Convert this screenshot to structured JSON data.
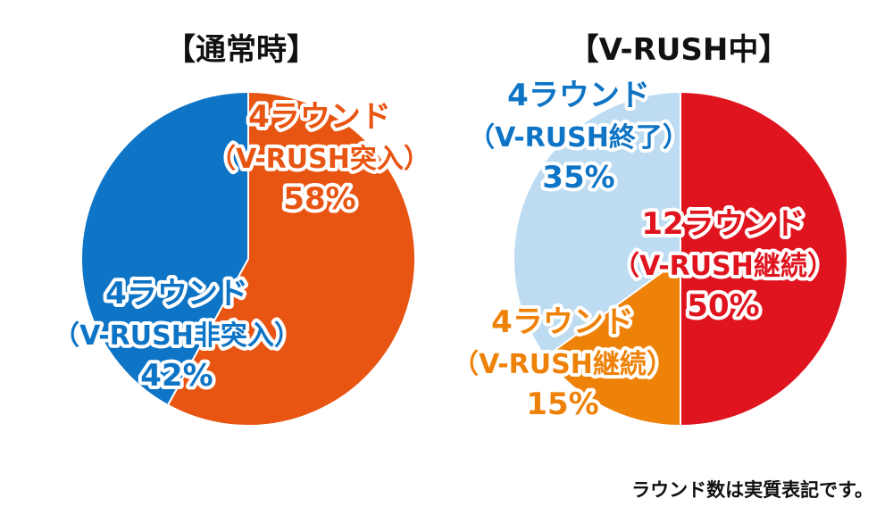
{
  "chart_data": [
    {
      "type": "pie",
      "title": "【通常時】",
      "slices": [
        {
          "label_lines": [
            "4ラウンド",
            "（V-RUSH突入）",
            "58%"
          ],
          "value": 58,
          "color": "#e85512",
          "text_color": "#e85512"
        },
        {
          "label_lines": [
            "4ラウンド",
            "（V-RUSH非突入）",
            "42%"
          ],
          "value": 42,
          "color": "#0e74c5",
          "text_color": "#0e74c5"
        }
      ]
    },
    {
      "type": "pie",
      "title": "【V-RUSH中】",
      "slices": [
        {
          "label_lines": [
            "12ラウンド",
            "（V-RUSH継続）",
            "50%"
          ],
          "value": 50,
          "color": "#e0141e",
          "text_color": "#e0141e"
        },
        {
          "label_lines": [
            "4ラウンド",
            "（V-RUSH継続）",
            "15%"
          ],
          "value": 15,
          "color": "#ee8208",
          "text_color": "#ee8208"
        },
        {
          "label_lines": [
            "4ラウンド",
            "（V-RUSH終了）",
            "35%"
          ],
          "value": 35,
          "color": "#bddbf1",
          "text_color": "#0e74c5"
        }
      ]
    }
  ],
  "footnote": "ラウンド数は実質表記です。"
}
